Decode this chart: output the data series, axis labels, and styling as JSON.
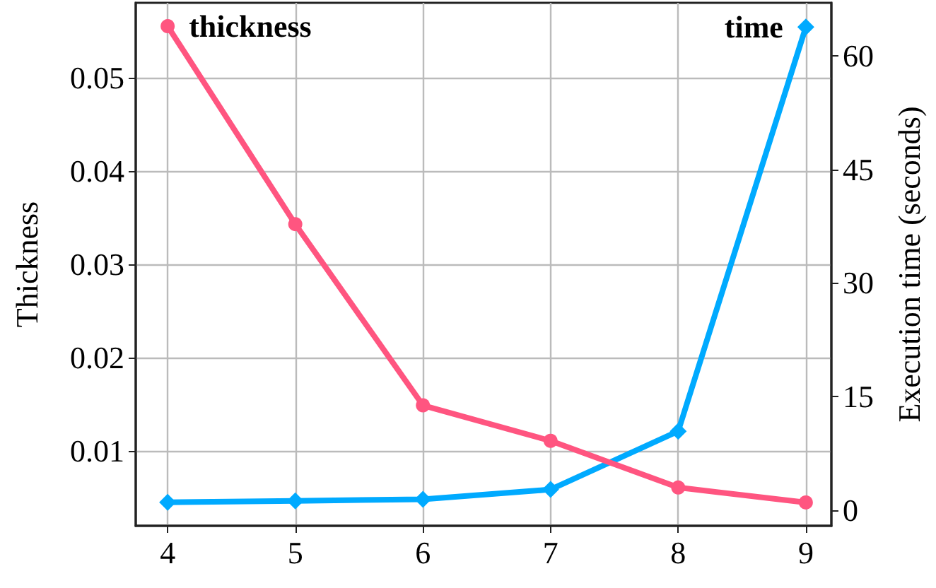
{
  "chart_data": {
    "type": "line",
    "xlabel": null,
    "ylabel": "Thickness",
    "y2label": "Execution time (seconds)",
    "x": [
      4,
      5,
      6,
      7,
      8,
      9
    ],
    "series": [
      {
        "name": "thickness",
        "color": "#ff5580",
        "marker": "circle",
        "values": [
          0.0555,
          0.0343,
          0.0149,
          0.0111,
          0.0061,
          0.0045
        ]
      },
      {
        "name": "time",
        "color": "#00aaff",
        "marker": "diamond",
        "axis": "y2",
        "values": [
          1.0,
          1.2,
          1.4,
          2.7,
          10.4,
          63.8
        ]
      }
    ],
    "xlim": [
      3.75,
      9.2
    ],
    "xticks": [
      4,
      5,
      6,
      7,
      8,
      9
    ],
    "ylim": [
      0.002,
      0.058
    ],
    "yticks": [
      0.01,
      0.02,
      0.03,
      0.04,
      0.05
    ],
    "y2lim": [
      -2.1,
      67
    ],
    "y2ticks": [
      0,
      15,
      30,
      45,
      60
    ],
    "grid": true,
    "line_style": "solid"
  }
}
